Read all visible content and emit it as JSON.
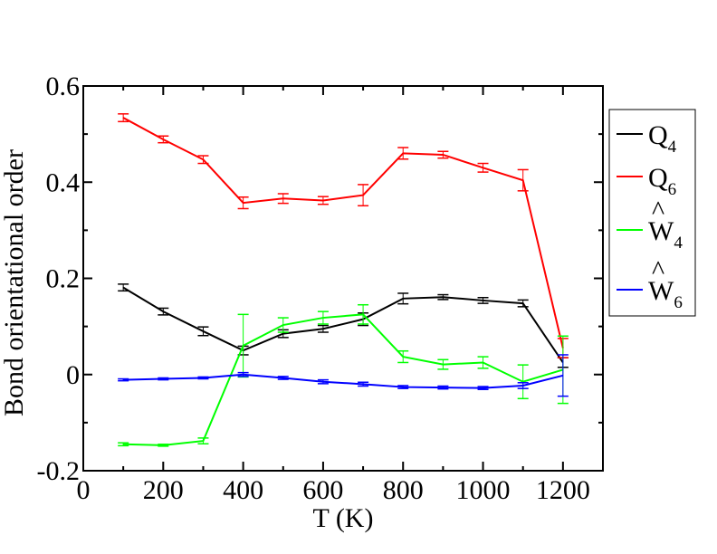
{
  "chart_data": {
    "type": "line",
    "title": "",
    "xlabel": "T (K)",
    "ylabel": "Bond orientational order",
    "xlim": [
      0,
      1300
    ],
    "ylim": [
      -0.2,
      0.6
    ],
    "xticks": [
      "0",
      "200",
      "400",
      "600",
      "800",
      "1000",
      "1200"
    ],
    "yticks": [
      "-0.2",
      "0",
      "0.2",
      "0.4",
      "0.6"
    ],
    "legend_position": "right, outside plot",
    "x": [
      100,
      200,
      300,
      400,
      500,
      600,
      700,
      800,
      900,
      1000,
      1100,
      1200
    ],
    "series": [
      {
        "legend_base": "Q",
        "legend_sub": "4",
        "legend_hat": false,
        "color": "#000000",
        "values": [
          0.181,
          0.131,
          0.09,
          0.05,
          0.085,
          0.095,
          0.115,
          0.158,
          0.161,
          0.154,
          0.148,
          0.025
        ],
        "errors": [
          0.007,
          0.007,
          0.009,
          0.009,
          0.008,
          0.007,
          0.013,
          0.011,
          0.005,
          0.006,
          0.007,
          0.01
        ]
      },
      {
        "legend_base": "Q",
        "legend_sub": "6",
        "legend_hat": false,
        "color": "#ff0000",
        "values": [
          0.534,
          0.489,
          0.447,
          0.357,
          0.366,
          0.362,
          0.373,
          0.46,
          0.457,
          0.43,
          0.404,
          0.055
        ],
        "errors": [
          0.008,
          0.007,
          0.008,
          0.012,
          0.01,
          0.008,
          0.022,
          0.012,
          0.007,
          0.009,
          0.022,
          0.02
        ]
      },
      {
        "legend_base": "W",
        "legend_sub": "4",
        "legend_hat": true,
        "color": "#00ff00",
        "values": [
          -0.145,
          -0.147,
          -0.138,
          0.06,
          0.103,
          0.118,
          0.125,
          0.037,
          0.021,
          0.025,
          -0.015,
          0.01
        ],
        "errors": [
          0.003,
          0.002,
          0.006,
          0.065,
          0.015,
          0.013,
          0.02,
          0.012,
          0.01,
          0.012,
          0.035,
          0.07
        ]
      },
      {
        "legend_base": "W",
        "legend_sub": "6",
        "legend_hat": true,
        "color": "#0000ff",
        "values": [
          -0.011,
          -0.009,
          -0.007,
          0.0,
          -0.007,
          -0.015,
          -0.02,
          -0.026,
          -0.027,
          -0.028,
          -0.023,
          -0.002
        ],
        "errors": [
          0.002,
          0.002,
          0.002,
          0.004,
          0.003,
          0.004,
          0.004,
          0.003,
          0.003,
          0.003,
          0.006,
          0.043
        ]
      }
    ]
  }
}
